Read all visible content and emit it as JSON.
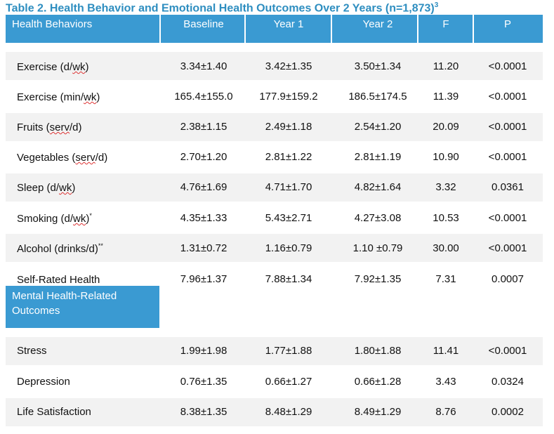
{
  "title": "Table 2. Health Behavior and Emotional Health Outcomes Over 2 Years (n=1,873)",
  "title_ref": "3",
  "header": {
    "label": "Health Behaviors",
    "baseline": "Baseline",
    "year1": "Year 1",
    "year2": "Year 2",
    "f": "F",
    "p": "P"
  },
  "behaviors": [
    {
      "label_pre": "Exercise (d/",
      "label_sq": "wk",
      "label_post": ")",
      "mark": "",
      "baseline": "3.34±1.40",
      "year1": "3.42±1.35",
      "year2": "3.50±1.34",
      "f": "11.20",
      "p": "<0.0001"
    },
    {
      "label_pre": "Exercise (min/",
      "label_sq": "wk",
      "label_post": ")",
      "mark": "",
      "baseline": "165.4±155.0",
      "year1": "177.9±159.2",
      "year2": "186.5±174.5",
      "f": "11.39",
      "p": "<0.0001"
    },
    {
      "label_pre": "Fruits (",
      "label_sq": "serv",
      "label_post": "/d)",
      "mark": "",
      "baseline": "2.38±1.15",
      "year1": "2.49±1.18",
      "year2": "2.54±1.20",
      "f": "20.09",
      "p": "<0.0001"
    },
    {
      "label_pre": "Vegetables (",
      "label_sq": "serv",
      "label_post": "/d)",
      "mark": "",
      "baseline": "2.70±1.20",
      "year1": "2.81±1.22",
      "year2": "2.81±1.19",
      "f": "10.90",
      "p": "<0.0001"
    },
    {
      "label_pre": "Sleep (d/",
      "label_sq": "wk",
      "label_post": ")",
      "mark": "",
      "baseline": "4.76±1.69",
      "year1": "4.71±1.70",
      "year2": "4.82±1.64",
      "f": "3.32",
      "p": "0.0361"
    },
    {
      "label_pre": "Smoking (d/",
      "label_sq": "wk",
      "label_post": ")",
      "mark": "*",
      "baseline": "4.35±1.33",
      "year1": "5.43±2.71",
      "year2": "4.27±3.08",
      "f": "10.53",
      "p": "<0.0001"
    },
    {
      "label_pre": "Alcohol (drinks/d)",
      "label_sq": "",
      "label_post": "",
      "mark": "**",
      "baseline": "1.31±0.72",
      "year1": "1.16±0.79",
      "year2": "1.10 ±0.79",
      "f": "30.00",
      "p": "<0.0001"
    },
    {
      "label_pre": "Self-Rated Health",
      "label_sq": "",
      "label_post": "",
      "mark": "",
      "baseline": "7.96±1.37",
      "year1": "7.88±1.34",
      "year2": "7.92±1.35",
      "f": "7.31",
      "p": "0.0007"
    }
  ],
  "mental_header": "Mental Health-Related Outcomes",
  "mental": [
    {
      "label": "Stress",
      "baseline": "1.99±1.98",
      "year1": "1.77±1.88",
      "year2": "1.80±1.88",
      "f": "11.41",
      "p": "<0.0001"
    },
    {
      "label": "Depression",
      "baseline": "0.76±1.35",
      "year1": "0.66±1.27",
      "year2": "0.66±1.28",
      "f": "3.43",
      "p": "0.0324"
    },
    {
      "label": "Life Satisfaction",
      "baseline": "8.38±1.35",
      "year1": "8.48±1.29",
      "year2": "8.49±1.29",
      "f": "8.76",
      "p": "0.0002"
    }
  ],
  "colors": {
    "header_bg": "#3A9AD2",
    "title": "#2E8EC0",
    "band": "#F2F2F2"
  }
}
